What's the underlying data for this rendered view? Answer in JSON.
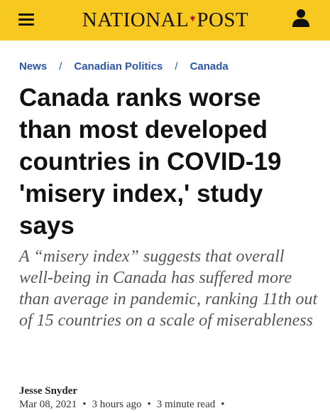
{
  "header": {
    "logo_text_left": "NATIONAL",
    "logo_text_right": "POST",
    "logo_icon": "maple-leaf-icon",
    "menu_icon": "hamburger-menu-icon",
    "account_icon": "user-icon",
    "background_color": "#f7c920"
  },
  "breadcrumb": {
    "items": [
      "News",
      "Canadian Politics",
      "Canada"
    ],
    "separator": "/",
    "link_color": "#2b55a6"
  },
  "article": {
    "headline": "Canada ranks worse than most developed countries in COVID-19 'misery index,' study says",
    "dek": "A “misery index” suggests that overall well-being in Canada has suffered more than average in pandemic, ranking 11th out of 15 countries on a scale of miserableness",
    "author": "Jesse Snyder",
    "date": "Mar 08, 2021",
    "time_ago": "3 hours ago",
    "read_time": "3 minute read",
    "meta_separator": "•"
  }
}
